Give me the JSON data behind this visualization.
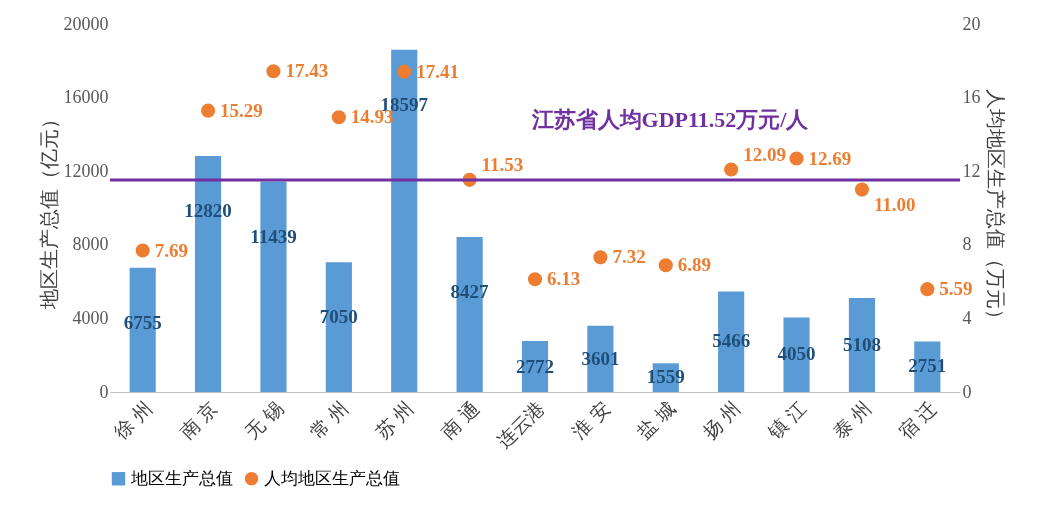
{
  "chart_data": {
    "type": "bar",
    "categories": [
      "徐 州",
      "南 京",
      "无 锡",
      "常 州",
      "苏 州",
      "南 通",
      "连云港",
      "淮 安",
      "盐 城",
      "扬 州",
      "镇 江",
      "泰 州",
      "宿 迁"
    ],
    "ylabel": "地区生产总值（亿元）",
    "y2label": "人均地区生产总值（万元）",
    "ylim": [
      0,
      20000
    ],
    "yticks": [
      0,
      4000,
      8000,
      12000,
      16000,
      20000
    ],
    "y2lim": [
      0,
      20
    ],
    "y2ticks": [
      0,
      4,
      8,
      12,
      16,
      20
    ],
    "series": [
      {
        "name": "地区生产总值",
        "color": "#5b9bd5",
        "values": [
          6755,
          12820,
          11439,
          7050,
          18597,
          8427,
          2772,
          3601,
          1559,
          5466,
          4050,
          5108,
          2751
        ]
      },
      {
        "name": "人均地区生产总值",
        "type": "scatter",
        "axis": "y2",
        "color": "#ed7d31",
        "values": [
          7.69,
          15.29,
          17.43,
          14.93,
          17.41,
          11.53,
          6.13,
          7.32,
          6.89,
          12.09,
          12.69,
          11.0,
          5.59
        ],
        "value_labels": [
          "7.69",
          "15.29",
          "17.43",
          "14.93",
          "17.41",
          "11.53",
          "6.13",
          "7.32",
          "6.89",
          "12.09",
          "12.69",
          "11.00",
          "5.59"
        ]
      }
    ],
    "ref_lines": [
      {
        "axis": "y2",
        "value": 11.52,
        "label": "江苏省人均GDP11.52万元/人",
        "color": "#7030a0"
      }
    ],
    "data_labels": true,
    "marker": "circle",
    "legend": "bottom",
    "grid": false
  }
}
